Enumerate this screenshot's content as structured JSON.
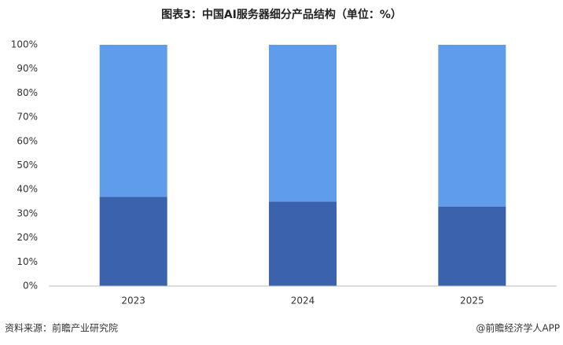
{
  "chart_data": {
    "type": "stacked_bar",
    "title": "图表3：中国AI服务器细分产品结构（单位：%）",
    "categories": [
      "2023",
      "2024",
      "2025"
    ],
    "series": [
      {
        "color": "#3b63ad",
        "values": [
          37,
          35,
          33
        ]
      },
      {
        "color": "#5f9deb",
        "values": [
          63,
          65,
          67
        ]
      }
    ],
    "ylim": [
      0,
      100
    ],
    "yticks": [
      {
        "value": 0,
        "label": "0%"
      },
      {
        "value": 10,
        "label": "10%"
      },
      {
        "value": 20,
        "label": "20%"
      },
      {
        "value": 30,
        "label": "30%"
      },
      {
        "value": 40,
        "label": "40%"
      },
      {
        "value": 50,
        "label": "50%"
      },
      {
        "value": 60,
        "label": "60%"
      },
      {
        "value": 70,
        "label": "70%"
      },
      {
        "value": 80,
        "label": "80%"
      },
      {
        "value": 90,
        "label": "90%"
      },
      {
        "value": 100,
        "label": "100%"
      }
    ],
    "grid": false,
    "source": "资料来源：前瞻产业研究院",
    "credit": "@前瞻经济学人APP"
  }
}
